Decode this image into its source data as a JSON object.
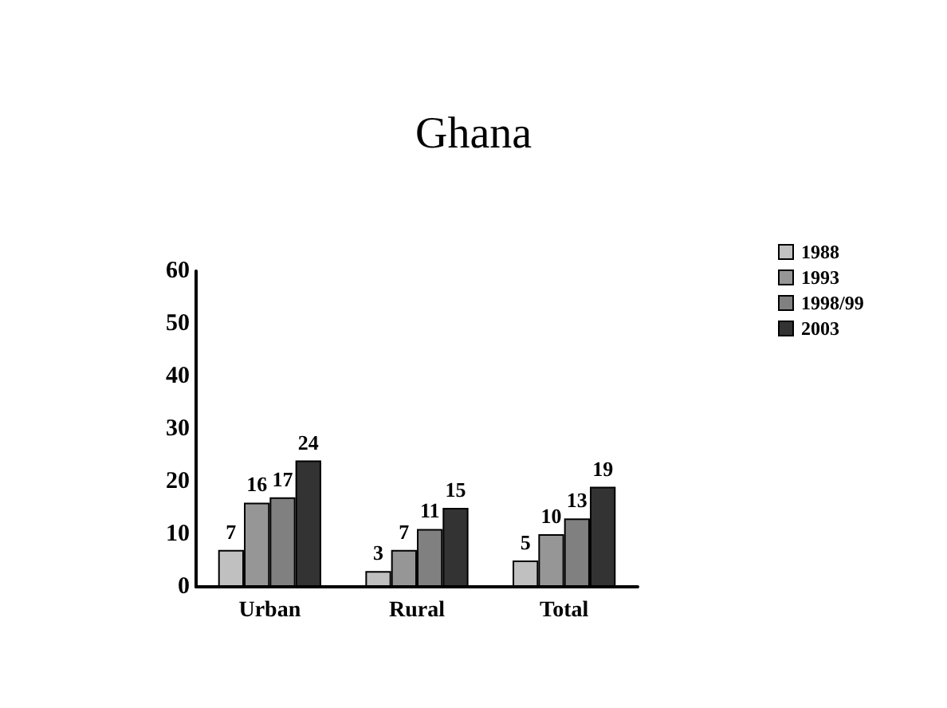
{
  "chart_data": {
    "type": "bar",
    "title": "Ghana",
    "categories": [
      "Urban",
      "Rural",
      "Total"
    ],
    "series": [
      {
        "name": "1988",
        "color": "#c0c0c0",
        "values": [
          7,
          3,
          5
        ]
      },
      {
        "name": "1993",
        "color": "#969696",
        "values": [
          16,
          7,
          10
        ]
      },
      {
        "name": "1998/99",
        "color": "#808080",
        "values": [
          17,
          11,
          13
        ]
      },
      {
        "name": "2003",
        "color": "#333333",
        "values": [
          24,
          15,
          19
        ]
      }
    ],
    "ylim": [
      0,
      60
    ],
    "yticks": [
      0,
      10,
      20,
      30,
      40,
      50,
      60
    ],
    "grid": false,
    "legend": "top right",
    "data_labels": true
  }
}
